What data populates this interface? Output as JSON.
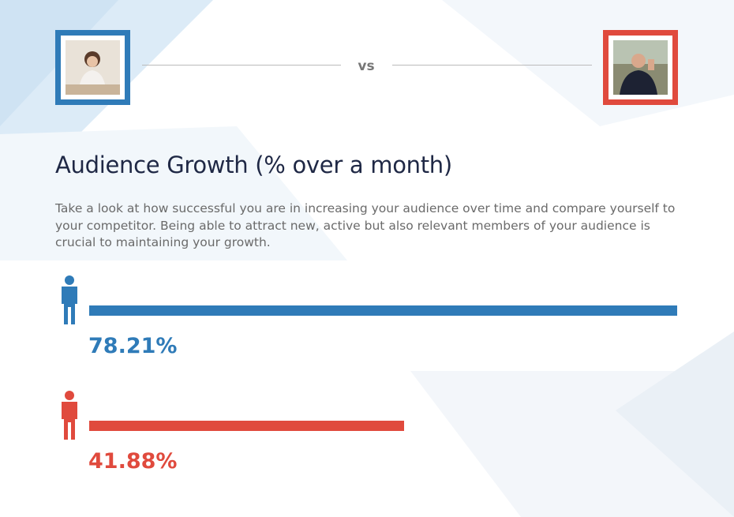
{
  "chart_data": {
    "type": "bar",
    "orientation": "horizontal",
    "annotation": "vs",
    "title": "Audience Growth (% over a month)",
    "subtitle": "Take a look at how successful you are in increasing your audience over time and compare yourself to your competitor. Being able to attract new, active but also relevant members of your audience is crucial to maintaining your growth.",
    "values": [
      78.21,
      41.88
    ],
    "value_labels": [
      "78.21%",
      "41.88%"
    ],
    "colors": [
      "#2f7bb8",
      "#e04a3d"
    ]
  }
}
